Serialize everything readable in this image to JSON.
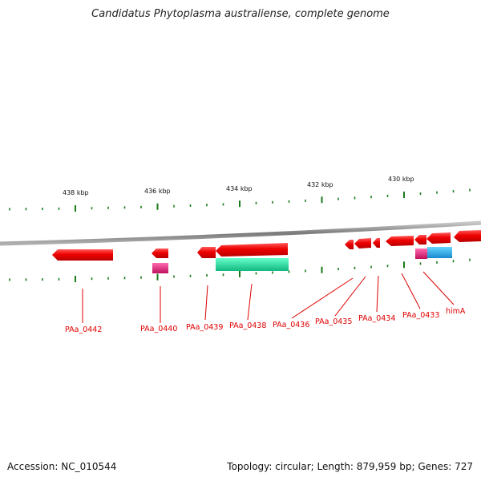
{
  "header": {
    "title": "Candidatus Phytoplasma australiense, complete genome"
  },
  "footer": {
    "accession": "Accession: NC_010544",
    "summary": "Topology: circular; Length: 879,959 bp; Genes: 727"
  },
  "scale_labels": [
    "438 kbp",
    "436 kbp",
    "434 kbp",
    "432 kbp",
    "430 kbp"
  ],
  "gene_labels": [
    "PAa_0442",
    "PAa_0440",
    "PAa_0439",
    "PAa_0438",
    "PAa_0436",
    "PAa_0435",
    "PAa_0434",
    "PAa_0433",
    "himA"
  ],
  "colors": {
    "backbone": "#8a8a8a",
    "cds": "#ee0000",
    "pink": "#e0207a",
    "green": "#22e0a0",
    "blue": "#22aaee",
    "tick": "#1a7a1a",
    "label": "#e00000"
  }
}
